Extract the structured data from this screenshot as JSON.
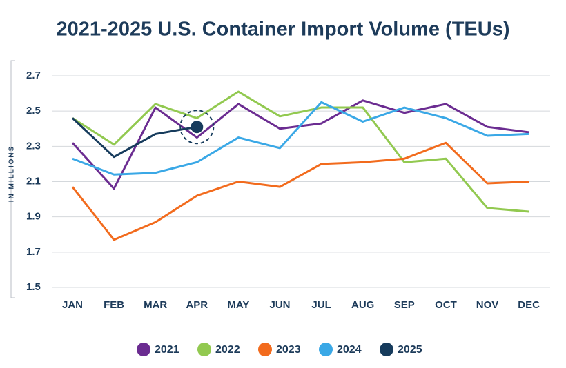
{
  "chart_data": {
    "type": "line",
    "title": "2021-2025 U.S. Container Import Volume (TEUs)",
    "y_axis_label": "IN MILLIONS",
    "categories": [
      "JAN",
      "FEB",
      "MAR",
      "APR",
      "MAY",
      "JUN",
      "JUL",
      "AUG",
      "SEP",
      "OCT",
      "NOV",
      "DEC"
    ],
    "ylim": [
      1.5,
      2.7
    ],
    "yticks": [
      1.5,
      1.7,
      1.9,
      2.1,
      2.3,
      2.5,
      2.7
    ],
    "grid": true,
    "legend": "bottom",
    "series": [
      {
        "name": "2021",
        "color": "#6b2c91",
        "values": [
          2.32,
          2.06,
          2.52,
          2.35,
          2.54,
          2.4,
          2.43,
          2.56,
          2.49,
          2.54,
          2.41,
          2.38
        ]
      },
      {
        "name": "2022",
        "color": "#92c950",
        "values": [
          2.46,
          2.31,
          2.54,
          2.46,
          2.61,
          2.47,
          2.52,
          2.52,
          2.21,
          2.23,
          1.95,
          1.93
        ]
      },
      {
        "name": "2023",
        "color": "#f26b1d",
        "values": [
          2.07,
          1.77,
          1.87,
          2.02,
          2.1,
          2.07,
          2.2,
          2.21,
          2.23,
          2.32,
          2.09,
          2.1
        ]
      },
      {
        "name": "2024",
        "color": "#3aa8e6",
        "values": [
          2.23,
          2.14,
          2.15,
          2.21,
          2.35,
          2.29,
          2.55,
          2.44,
          2.52,
          2.46,
          2.36,
          2.37
        ]
      },
      {
        "name": "2025",
        "color": "#163b5c",
        "values": [
          2.46,
          2.24,
          2.37,
          2.41,
          null,
          null,
          null,
          null,
          null,
          null,
          null,
          null
        ]
      }
    ]
  }
}
